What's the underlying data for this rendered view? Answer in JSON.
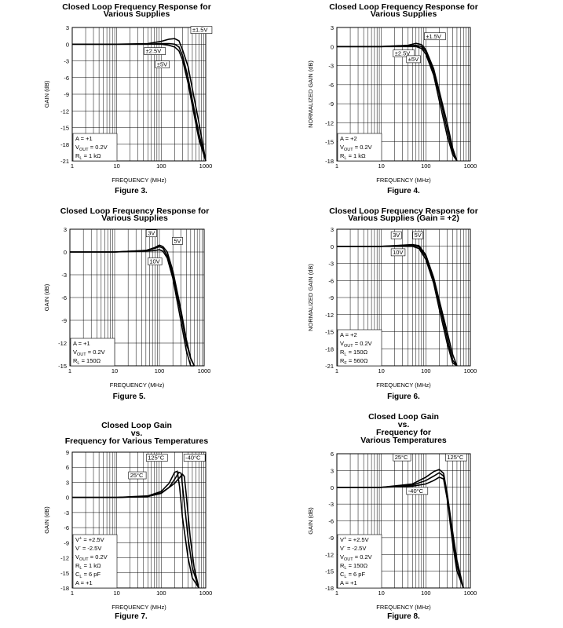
{
  "chart_data": [
    {
      "type": "line",
      "title": [
        "Closed Loop Frequency Response for",
        "Various Supplies"
      ],
      "caption": "Figure 3.",
      "xlabel": "FREQUENCY (MHz)",
      "ylabel": "GAIN (dB)",
      "xscale": "log",
      "xlim": [
        1,
        1000
      ],
      "ylim": [
        -21,
        3
      ],
      "xticks": [
        "1",
        "10",
        "100",
        "1000"
      ],
      "yticks": [
        "3",
        "0",
        "-3",
        "-6",
        "-9",
        "-12",
        "-15",
        "-18",
        "-21"
      ],
      "conditions": [
        {
          "t": "A = +1"
        },
        {
          "t": "V",
          "sub": "OUT",
          "rest": " = 0.2V"
        },
        {
          "t": "R",
          "sub": "L",
          "rest": " = 1 kΩ"
        }
      ],
      "series": [
        {
          "name": "±1.5V",
          "x": [
            1,
            10,
            50,
            100,
            150,
            200,
            250,
            300,
            400,
            500,
            700,
            1000
          ],
          "y": [
            0,
            0,
            0.1,
            0.5,
            0.9,
            1.0,
            0.6,
            -1,
            -4,
            -8,
            -14,
            -21
          ]
        },
        {
          "name": "±2.5V",
          "x": [
            1,
            10,
            50,
            100,
            150,
            200,
            250,
            300,
            400,
            500,
            700,
            1000
          ],
          "y": [
            0,
            0,
            0,
            0.1,
            0.1,
            0,
            -0.5,
            -2,
            -6,
            -10,
            -16,
            -21
          ]
        },
        {
          "name": "±5V",
          "x": [
            1,
            10,
            50,
            100,
            150,
            200,
            250,
            300,
            400,
            500,
            700,
            1000
          ],
          "y": [
            0,
            0,
            0,
            0,
            -0.2,
            -0.5,
            -1.2,
            -2.8,
            -7,
            -11,
            -17,
            -21
          ]
        }
      ]
    },
    {
      "type": "line",
      "title": [
        "Closed Loop Frequency Response for",
        "Various Supplies"
      ],
      "caption": "Figure 4.",
      "xlabel": "FREQUENCY (MHz)",
      "ylabel": "NORMALIZED GAIN (dB)",
      "xscale": "log",
      "xlim": [
        1,
        1000
      ],
      "ylim": [
        -18,
        3
      ],
      "xticks": [
        "1",
        "10",
        "100",
        "1000"
      ],
      "yticks": [
        "3",
        "0",
        "-3",
        "-6",
        "-9",
        "-12",
        "-15",
        "-18"
      ],
      "conditions": [
        {
          "t": "A = +2"
        },
        {
          "t": "V",
          "sub": "OUT",
          "rest": " = 0.2V"
        },
        {
          "t": "R",
          "sub": "L",
          "rest": " = 1 kΩ"
        }
      ],
      "series": [
        {
          "name": "±1.5V",
          "x": [
            1,
            10,
            40,
            60,
            80,
            100,
            150,
            200,
            300,
            400,
            500
          ],
          "y": [
            0,
            0,
            0.2,
            0.5,
            0.3,
            -0.5,
            -3.5,
            -7,
            -12,
            -16,
            -18
          ]
        },
        {
          "name": "±2.5V",
          "x": [
            1,
            10,
            40,
            60,
            80,
            100,
            150,
            200,
            300,
            400,
            500
          ],
          "y": [
            0,
            0,
            0.1,
            0.2,
            0,
            -0.8,
            -4,
            -7.5,
            -13,
            -16.5,
            -18
          ]
        },
        {
          "name": "±5V",
          "x": [
            1,
            10,
            40,
            60,
            80,
            100,
            150,
            200,
            300,
            400,
            500
          ],
          "y": [
            0,
            0,
            0,
            0,
            -0.3,
            -1.2,
            -4.5,
            -8.5,
            -14,
            -17,
            -18
          ]
        }
      ]
    },
    {
      "type": "line",
      "title": [
        "Closed Loop Frequency Response for",
        "Various Supplies"
      ],
      "caption": "Figure 5.",
      "xlabel": "FREQUENCY (MHz)",
      "ylabel": "GAIN (dB)",
      "xscale": "log",
      "xlim": [
        1,
        1000
      ],
      "ylim": [
        -15,
        3
      ],
      "xticks": [
        "1",
        "10",
        "100",
        "1000"
      ],
      "yticks": [
        "3",
        "0",
        "-3",
        "-6",
        "-9",
        "-12",
        "-15"
      ],
      "conditions": [
        {
          "t": "A = +1"
        },
        {
          "t": "V",
          "sub": "OUT",
          "rest": " = 0.2V"
        },
        {
          "t": "R",
          "sub": "L",
          "rest": " = 150Ω"
        }
      ],
      "series": [
        {
          "name": "3V",
          "x": [
            1,
            10,
            50,
            80,
            100,
            120,
            150,
            200,
            300,
            400,
            500,
            600
          ],
          "y": [
            0,
            0,
            0.2,
            0.5,
            0.7,
            0.5,
            -0.5,
            -3,
            -8,
            -12,
            -14,
            -15
          ]
        },
        {
          "name": "5V",
          "x": [
            1,
            10,
            50,
            80,
            100,
            120,
            150,
            200,
            300,
            400,
            500,
            600
          ],
          "y": [
            0,
            0,
            0.2,
            0.6,
            0.9,
            0.7,
            0,
            -2.5,
            -7.5,
            -11.5,
            -14,
            -15
          ]
        },
        {
          "name": "10V",
          "x": [
            1,
            10,
            50,
            80,
            100,
            120,
            150,
            200,
            300,
            400,
            500,
            600
          ],
          "y": [
            0,
            0,
            0.1,
            0.2,
            0.3,
            0.1,
            -0.8,
            -3.5,
            -9,
            -13,
            -15,
            -15
          ]
        }
      ]
    },
    {
      "type": "line",
      "title": [
        "Closed Loop Frequency Response for",
        "Various Supplies (Gain = +2)"
      ],
      "caption": "Figure 6.",
      "xlabel": "FREQUENCY (MHz)",
      "ylabel": "NORMALIZED GAIN (dB)",
      "xscale": "log",
      "xlim": [
        1,
        1000
      ],
      "ylim": [
        -21,
        3
      ],
      "xticks": [
        "1",
        "10",
        "100",
        "1000"
      ],
      "yticks": [
        "3",
        "0",
        "-3",
        "-6",
        "-9",
        "-12",
        "-15",
        "-18",
        "-21"
      ],
      "conditions": [
        {
          "t": "A = +2"
        },
        {
          "t": "V",
          "sub": "OUT",
          "rest": " = 0.2V"
        },
        {
          "t": "R",
          "sub": "L",
          "rest": " = 150Ω"
        },
        {
          "t": "R",
          "sub": "F",
          "rest": " = 560Ω"
        }
      ],
      "series": [
        {
          "name": "3V",
          "x": [
            1,
            10,
            30,
            50,
            70,
            100,
            150,
            200,
            300,
            400,
            500
          ],
          "y": [
            0,
            0,
            0.2,
            0.3,
            0.1,
            -1.5,
            -5.5,
            -9.5,
            -15,
            -19,
            -21
          ]
        },
        {
          "name": "5V",
          "x": [
            1,
            10,
            30,
            50,
            70,
            100,
            150,
            200,
            300,
            400,
            500
          ],
          "y": [
            0,
            0,
            0.1,
            0.2,
            -0.1,
            -1.8,
            -6,
            -10,
            -16,
            -20,
            -21
          ]
        },
        {
          "name": "10V",
          "x": [
            1,
            10,
            30,
            50,
            70,
            100,
            150,
            200,
            300,
            400,
            500
          ],
          "y": [
            0,
            0,
            0,
            0,
            -0.4,
            -2.3,
            -6.5,
            -11,
            -17,
            -20.5,
            -21
          ]
        }
      ]
    },
    {
      "type": "line",
      "title": [
        "Closed Loop Gain",
        "vs.",
        "Frequency for Various Temperatures"
      ],
      "caption": "Figure 7.",
      "xlabel": "FREQUENCY (MHz)",
      "ylabel": "GAIN (dB)",
      "xscale": "log",
      "xlim": [
        1,
        1000
      ],
      "ylim": [
        -18,
        9
      ],
      "xticks": [
        "1",
        "10",
        "100",
        "1000"
      ],
      "yticks": [
        "9",
        "6",
        "3",
        "0",
        "-3",
        "-6",
        "-9",
        "-12",
        "-15",
        "-18"
      ],
      "conditions": [
        {
          "t": "V",
          "sup": "+",
          "rest": " = +2.5V"
        },
        {
          "t": "V",
          "sup": "-",
          "rest": " = -2.5V"
        },
        {
          "t": "V",
          "sub": "OUT",
          "rest": " = 0.2V"
        },
        {
          "t": "R",
          "sub": "L",
          "rest": " = 1 kΩ"
        },
        {
          "t": "C",
          "sub": "L",
          "rest": " = 6 pF"
        },
        {
          "t": "A = +1"
        }
      ],
      "series": [
        {
          "name": "125°C",
          "x": [
            1,
            10,
            50,
            100,
            150,
            200,
            230,
            260,
            300,
            400,
            500,
            700
          ],
          "y": [
            0,
            0,
            0.3,
            1.2,
            2.8,
            5,
            5.2,
            2,
            -4,
            -12,
            -16,
            -18
          ]
        },
        {
          "name": "25°C",
          "x": [
            1,
            10,
            50,
            100,
            150,
            200,
            250,
            280,
            320,
            400,
            500,
            700
          ],
          "y": [
            0,
            0,
            0.2,
            0.9,
            2,
            3.6,
            5,
            4.8,
            0,
            -8,
            -14,
            -18
          ]
        },
        {
          "name": "-40°C",
          "x": [
            1,
            10,
            50,
            100,
            200,
            250,
            300,
            330,
            360,
            450,
            550,
            700
          ],
          "y": [
            0,
            0,
            0.2,
            0.8,
            2.8,
            3.8,
            4.6,
            4.2,
            1,
            -8,
            -14,
            -18
          ]
        }
      ]
    },
    {
      "type": "line",
      "title": [
        "Closed Loop Gain",
        "vs.",
        "Frequency for",
        "Various Temperatures"
      ],
      "caption": "Figure 8.",
      "xlabel": "FREQUENCY (MHz)",
      "ylabel": "GAIN (dB)",
      "xscale": "log",
      "xlim": [
        1,
        1000
      ],
      "ylim": [
        -18,
        6
      ],
      "xticks": [
        "1",
        "10",
        "100",
        "1000"
      ],
      "yticks": [
        "6",
        "3",
        "0",
        "-3",
        "-6",
        "-9",
        "-12",
        "-15",
        "-18"
      ],
      "conditions": [
        {
          "t": "V",
          "sup": "+",
          "rest": " = +2.5V"
        },
        {
          "t": "V",
          "sup": "-",
          "rest": " = -2.5V"
        },
        {
          "t": "V",
          "sub": "OUT",
          "rest": " = 0.2V"
        },
        {
          "t": "R",
          "sub": "L",
          "rest": " = 150Ω"
        },
        {
          "t": "C",
          "sub": "L",
          "rest": " = 6 pF"
        },
        {
          "t": "A = +1"
        }
      ],
      "series": [
        {
          "name": "125°C",
          "x": [
            1,
            10,
            50,
            100,
            150,
            200,
            250,
            300,
            400,
            500,
            700
          ],
          "y": [
            0,
            0,
            0.2,
            0.6,
            1.2,
            1.8,
            1.5,
            -2,
            -10,
            -15,
            -18
          ]
        },
        {
          "name": "25°C",
          "x": [
            1,
            10,
            50,
            100,
            150,
            200,
            250,
            300,
            400,
            500,
            700
          ],
          "y": [
            0,
            0,
            0.4,
            1.2,
            2,
            2.6,
            2,
            -1.5,
            -9,
            -14,
            -18
          ]
        },
        {
          "name": "-40°C",
          "x": [
            1,
            10,
            50,
            100,
            150,
            200,
            250,
            300,
            400,
            500,
            700
          ],
          "y": [
            0,
            0,
            0.6,
            1.8,
            2.8,
            3.2,
            2.5,
            -1,
            -8,
            -13,
            -18
          ]
        }
      ]
    }
  ],
  "annotations": [
    [
      {
        "text": "±1.5V",
        "x": 500,
        "y": 2.2
      },
      {
        "text": "±2.5V",
        "x": 45,
        "y": -1.6
      },
      {
        "text": "±5V",
        "x": 80,
        "y": -4
      }
    ],
    [
      {
        "text": "±1.5V",
        "x": 100,
        "y": 1.3
      },
      {
        "text": "±2.5V",
        "x": 20,
        "y": -1.4
      },
      {
        "text": "±5V",
        "x": 40,
        "y": -2.3
      }
    ],
    [
      {
        "text": "3V",
        "x": 55,
        "y": 2.2
      },
      {
        "text": "5V",
        "x": 210,
        "y": 1.2
      },
      {
        "text": "10V",
        "x": 60,
        "y": -1.5
      }
    ],
    [
      {
        "text": "3V",
        "x": 18,
        "y": 1.6
      },
      {
        "text": "5V",
        "x": 55,
        "y": 1.6
      },
      {
        "text": "10V",
        "x": 18,
        "y": -1.4
      }
    ],
    [
      {
        "text": "125°C",
        "x": 50,
        "y": 7.5
      },
      {
        "text": "25°C",
        "x": 20,
        "y": 4
      },
      {
        "text": "-40°C",
        "x": 350,
        "y": 7.5
      }
    ],
    [
      {
        "text": "25°C",
        "x": 20,
        "y": 5
      },
      {
        "text": "125°C",
        "x": 300,
        "y": 5
      },
      {
        "text": "-40°C",
        "x": 40,
        "y": -1
      }
    ]
  ]
}
